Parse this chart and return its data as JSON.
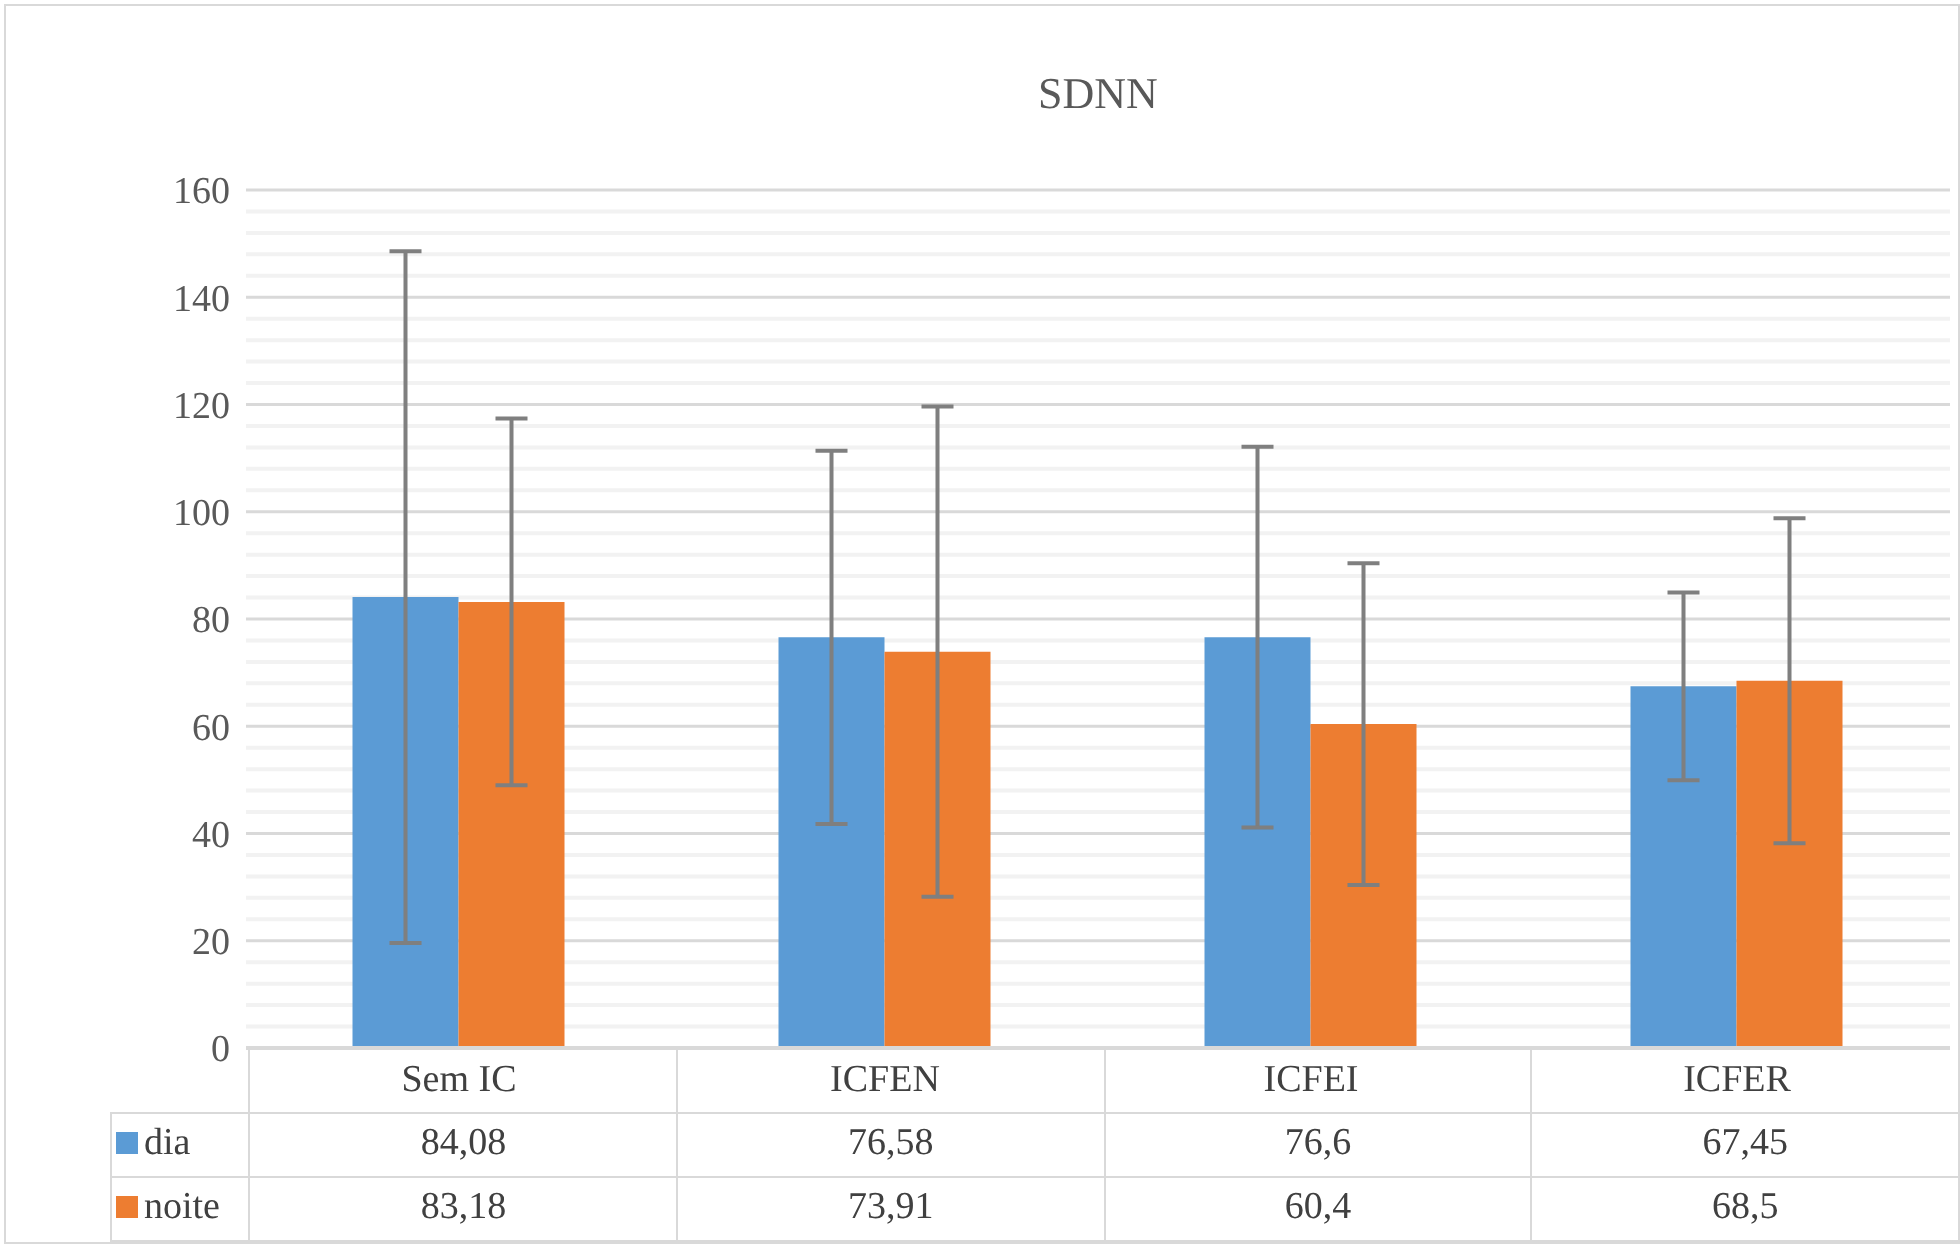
{
  "chart_data": {
    "type": "bar",
    "title": "SDNN",
    "categories": [
      "Sem IC",
      "ICFEN",
      "ICFEI",
      "ICFER"
    ],
    "series": [
      {
        "name": "dia",
        "color": "#5b9bd5",
        "values": [
          84.08,
          76.58,
          76.6,
          67.45
        ],
        "value_labels": [
          "84,08",
          "76,58",
          "76,6",
          "67,45"
        ],
        "errors": [
          64.5,
          34.8,
          35.5,
          17.5
        ]
      },
      {
        "name": "noite",
        "color": "#ed7d31",
        "values": [
          83.18,
          73.91,
          60.4,
          68.5
        ],
        "value_labels": [
          "83,18",
          "73,91",
          "60,4",
          "68,5"
        ],
        "errors": [
          34.2,
          45.7,
          30,
          30.3
        ]
      }
    ],
    "ylim": [
      0,
      160
    ],
    "yticks": [
      0,
      {
        "value": 4,
        "label": null
      },
      {
        "value": 8,
        "label": null
      },
      {
        "value": 12,
        "label": null
      },
      {
        "value": 16,
        "label": null
      },
      20,
      {
        "value": 24,
        "label": null
      },
      {
        "value": 28,
        "label": null
      },
      {
        "value": 32,
        "label": null
      },
      {
        "value": 36,
        "label": null
      },
      40,
      {
        "value": 44,
        "label": null
      },
      {
        "value": 48,
        "label": null
      },
      {
        "value": 52,
        "label": null
      },
      {
        "value": 56,
        "label": null
      },
      60,
      {
        "value": 64,
        "label": null
      },
      {
        "value": 68,
        "label": null
      },
      {
        "value": 72,
        "label": null
      },
      {
        "value": 76,
        "label": null
      },
      80,
      {
        "value": 84,
        "label": null
      },
      {
        "value": 88,
        "label": null
      },
      {
        "value": 92,
        "label": null
      },
      {
        "value": 96,
        "label": null
      },
      100,
      {
        "value": 104,
        "label": null
      },
      {
        "value": 108,
        "label": null
      },
      {
        "value": 112,
        "label": null
      },
      {
        "value": 116,
        "label": null
      },
      120,
      {
        "value": 124,
        "label": null
      },
      {
        "value": 128,
        "label": null
      },
      {
        "value": 132,
        "label": null
      },
      {
        "value": 136,
        "label": null
      },
      140,
      {
        "value": 144,
        "label": null
      },
      {
        "value": 148,
        "label": null
      },
      {
        "value": 152,
        "label": null
      },
      {
        "value": 156,
        "label": null
      },
      160
    ],
    "grid": "y",
    "legend": "bottom"
  }
}
